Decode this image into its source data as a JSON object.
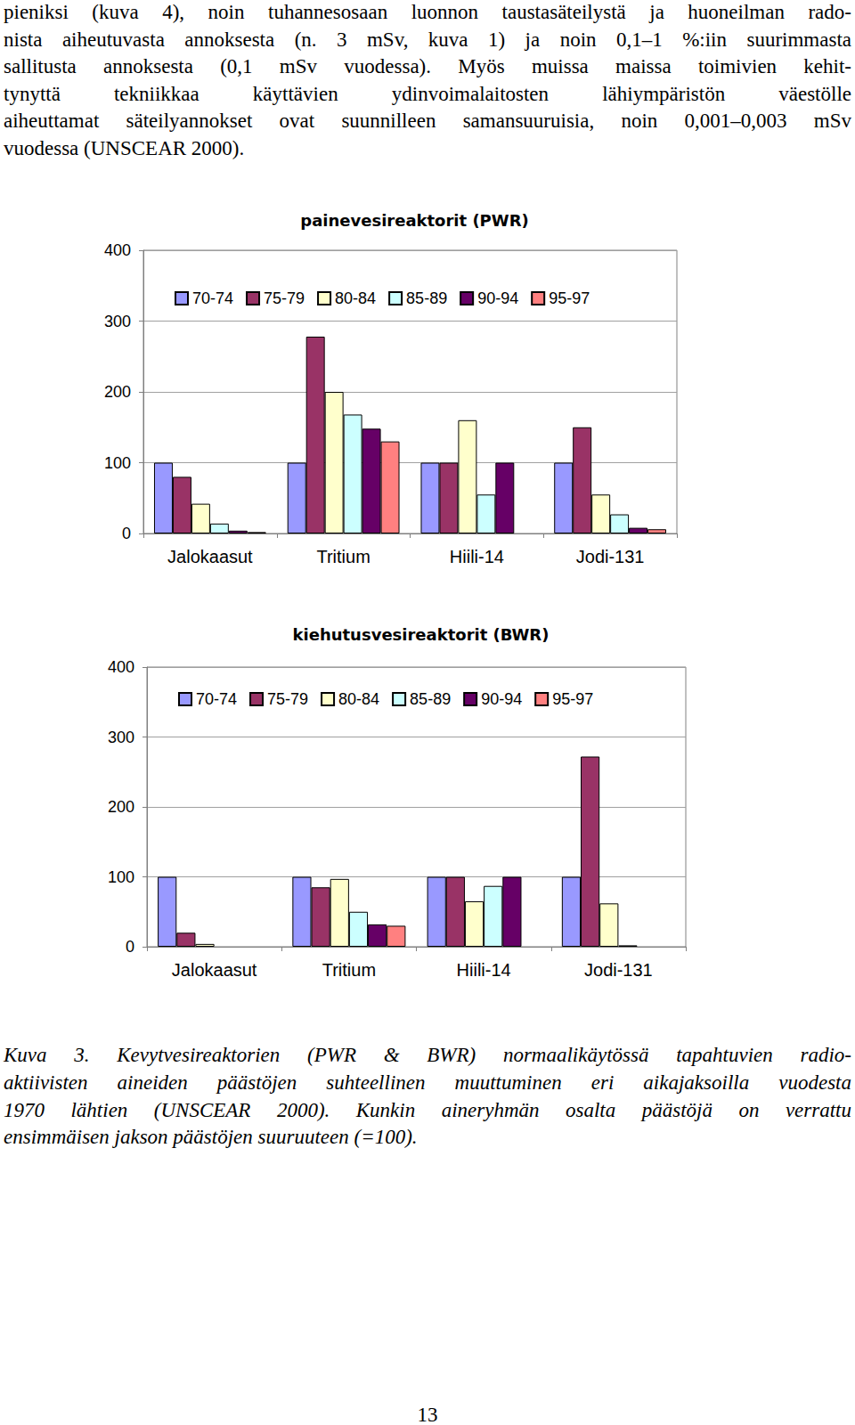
{
  "text_lines": [
    "pieniksi (kuva 4), noin tuhannesosaan luonnon taustasäteilystä ja huoneilman rado-",
    "nista aiheutuvasta annoksesta (n. 3 mSv, kuva 1) ja noin 0,1–1 %:iin suurimmasta",
    "sallitusta annoksesta (0,1 mSv vuodessa). Myös muissa maissa toimivien kehit-",
    "tynyttä tekniikkaa käyttävien ydinvoimalaitosten lähiympäristön väestölle",
    "aiheuttamat säteilyannokset ovat suunnilleen samansuuruisia, noin 0,001–0,003 mSv",
    "vuodessa (UNSCEAR 2000)."
  ],
  "chart_data": [
    {
      "type": "bar",
      "title": "painevesireaktorit (PWR)",
      "categories": [
        "Jalokaasut",
        "Tritium",
        "Hiili-14",
        "Jodi-131"
      ],
      "series": [
        {
          "name": "70-74",
          "color": "#9999ff",
          "values": [
            100,
            100,
            100,
            100
          ]
        },
        {
          "name": "75-79",
          "color": "#993366",
          "values": [
            80,
            278,
            100,
            150
          ]
        },
        {
          "name": "80-84",
          "color": "#ffffcc",
          "values": [
            42,
            200,
            160,
            55
          ]
        },
        {
          "name": "85-89",
          "color": "#ccffff",
          "values": [
            14,
            168,
            55,
            27
          ]
        },
        {
          "name": "90-94",
          "color": "#660066",
          "values": [
            4,
            148,
            100,
            8
          ]
        },
        {
          "name": "95-97",
          "color": "#ff8080",
          "values": [
            2,
            130,
            null,
            6
          ]
        }
      ],
      "ylim": [
        0,
        400
      ],
      "yticks": [
        0,
        100,
        200,
        300,
        400
      ],
      "grid": true,
      "legend": "top"
    },
    {
      "type": "bar",
      "title": "kiehutusvesireaktorit (BWR)",
      "categories": [
        "Jalokaasut",
        "Tritium",
        "Hiili-14",
        "Jodi-131"
      ],
      "series": [
        {
          "name": "70-74",
          "color": "#9999ff",
          "values": [
            100,
            100,
            100,
            100
          ]
        },
        {
          "name": "75-79",
          "color": "#993366",
          "values": [
            20,
            85,
            100,
            272
          ]
        },
        {
          "name": "80-84",
          "color": "#ffffcc",
          "values": [
            4,
            97,
            65,
            62
          ]
        },
        {
          "name": "85-89",
          "color": "#ccffff",
          "values": [
            null,
            50,
            87,
            2
          ]
        },
        {
          "name": "90-94",
          "color": "#660066",
          "values": [
            null,
            32,
            100,
            null
          ]
        },
        {
          "name": "95-97",
          "color": "#ff8080",
          "values": [
            null,
            30,
            null,
            null
          ]
        }
      ],
      "ylim": [
        0,
        400
      ],
      "yticks": [
        0,
        100,
        200,
        300,
        400
      ],
      "grid": true,
      "legend": "top"
    }
  ],
  "caption_lines": [
    "Kuva 3.  Kevytvesireaktorien (PWR & BWR) normaalikäytössä tapahtuvien radio-",
    "aktiivisten aineiden päästöjen suhteellinen muuttuminen eri aikajaksoilla vuodesta",
    "1970 lähtien (UNSCEAR 2000). Kunkin aineryhmän osalta päästöjä on verrattu",
    "ensimmäisen jakson päästöjen suuruuteen (=100)."
  ],
  "page_number": "13"
}
